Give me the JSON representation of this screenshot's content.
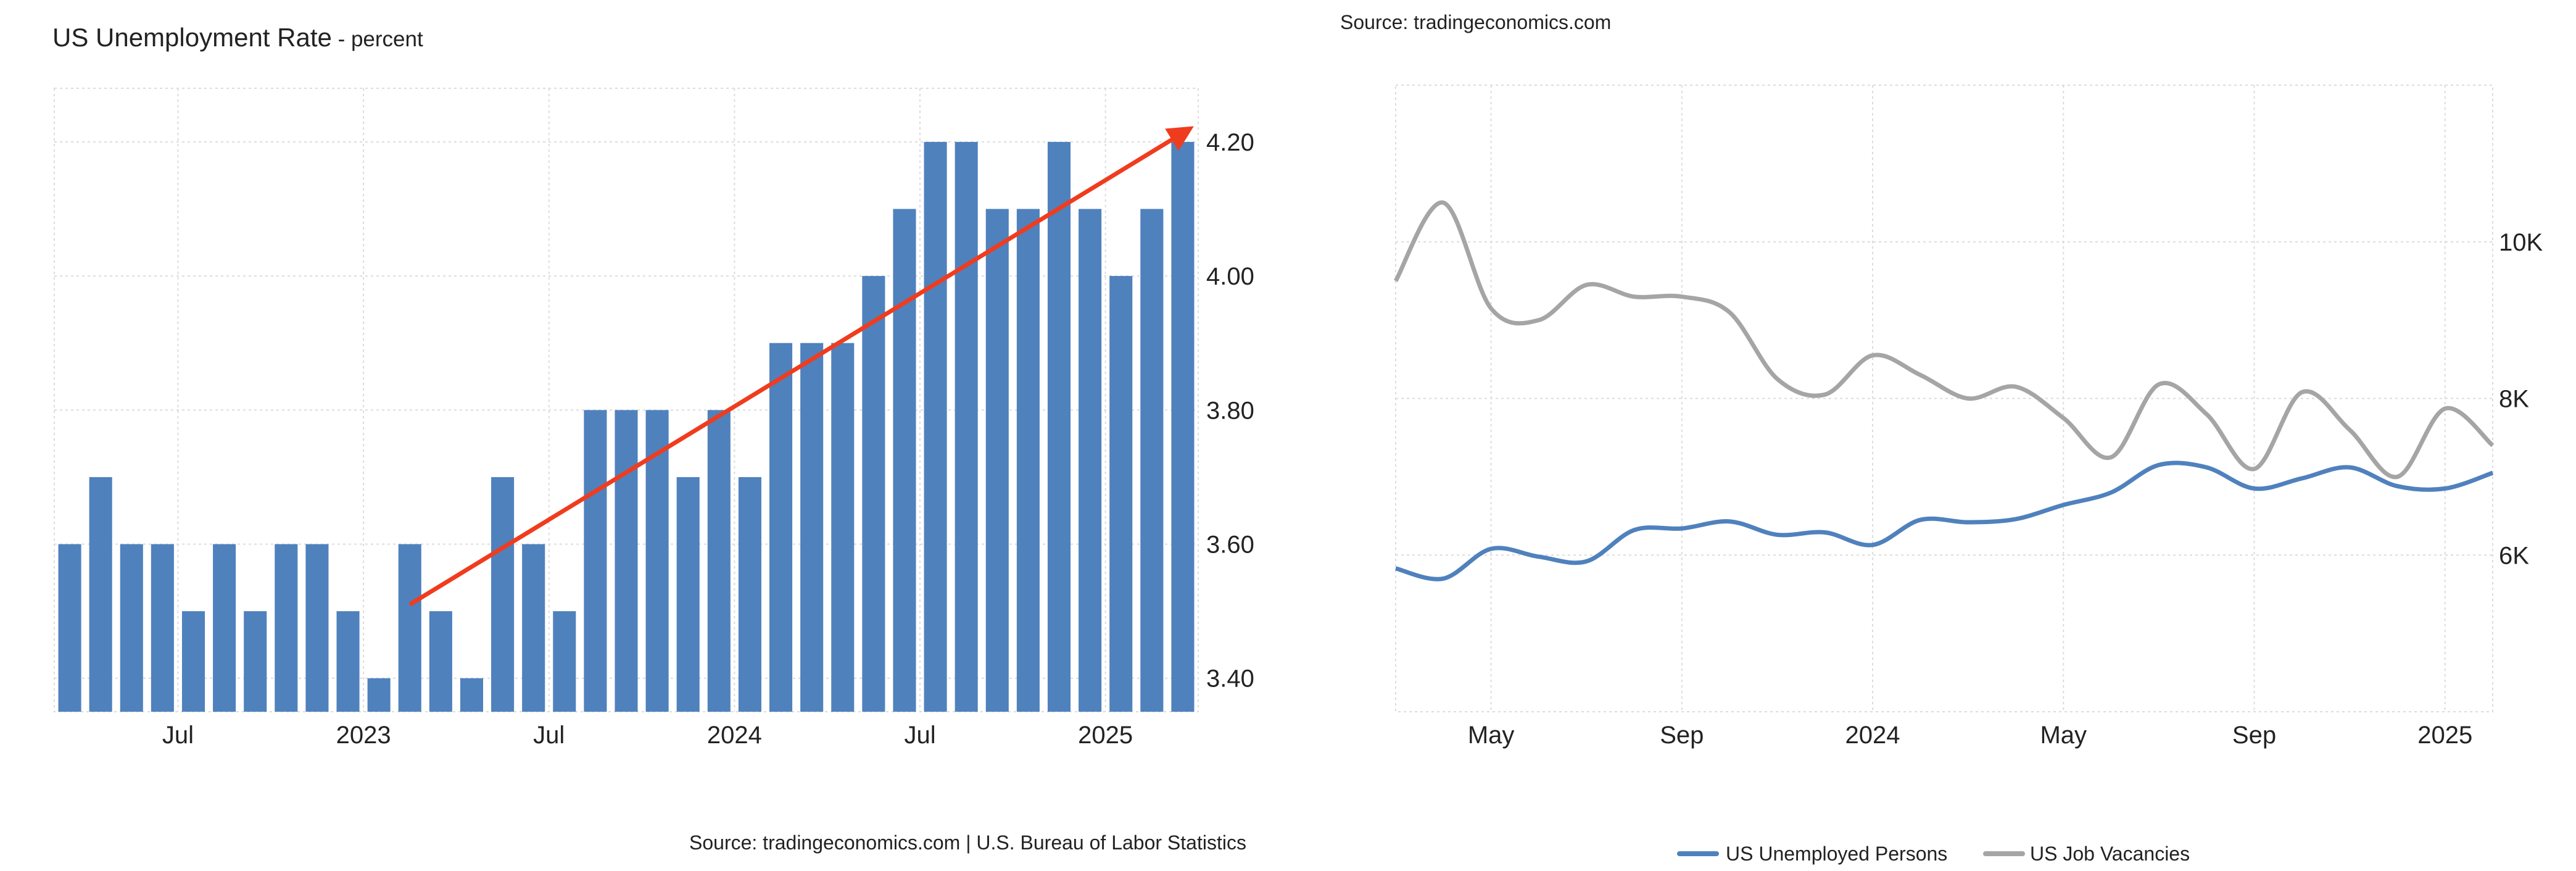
{
  "chart_data": [
    {
      "type": "bar",
      "title": "US Unemployment Rate",
      "subtitle": "percent",
      "source": "Source: tradingeconomics.com | U.S. Bureau of Labor Statistics",
      "bar_color": "#4f81bd",
      "trend_arrow_color": "#f03c1e",
      "x_tick_labels": [
        "Jul",
        "2023",
        "Jul",
        "2024",
        "Jul",
        "2025"
      ],
      "y_tick_labels": [
        "3.40",
        "3.60",
        "3.80",
        "4.00",
        "4.20"
      ],
      "ylim": [
        3.35,
        4.28
      ],
      "values": [
        3.6,
        3.7,
        3.6,
        3.6,
        3.5,
        3.6,
        3.5,
        3.6,
        3.6,
        3.5,
        3.4,
        3.6,
        3.5,
        3.4,
        3.7,
        3.6,
        3.5,
        3.8,
        3.8,
        3.8,
        3.7,
        3.8,
        3.7,
        3.9,
        3.9,
        3.9,
        4.0,
        4.1,
        4.2,
        4.2,
        4.1,
        4.1,
        4.2,
        4.1,
        4.0,
        4.1,
        4.2
      ],
      "trend_arrow": {
        "from_index": 11,
        "from_value": 3.51,
        "to_index": 36,
        "to_value": 4.22
      }
    },
    {
      "type": "line",
      "source": "Source: tradingeconomics.com",
      "x_tick_labels": [
        "May",
        "Sep",
        "2024",
        "May",
        "Sep",
        "2025"
      ],
      "y_tick_labels": [
        "6K",
        "8K",
        "10K"
      ],
      "ylim": [
        4000,
        12000
      ],
      "series": [
        {
          "name": "US Unemployed Persons",
          "color": "#4f81bd",
          "values": [
            5830,
            5700,
            6080,
            5980,
            5920,
            6320,
            6340,
            6430,
            6260,
            6290,
            6130,
            6450,
            6420,
            6460,
            6640,
            6800,
            7150,
            7120,
            6850,
            6980,
            7120,
            6880,
            6850,
            7050
          ]
        },
        {
          "name": "US Job Vacancies",
          "color": "#a5a5a5",
          "values": [
            9500,
            10500,
            9150,
            9000,
            9450,
            9300,
            9300,
            9100,
            8250,
            8050,
            8550,
            8300,
            8000,
            8150,
            7750,
            7250,
            8180,
            7800,
            7100,
            8080,
            7600,
            7000,
            7870,
            7400
          ]
        }
      ]
    }
  ]
}
